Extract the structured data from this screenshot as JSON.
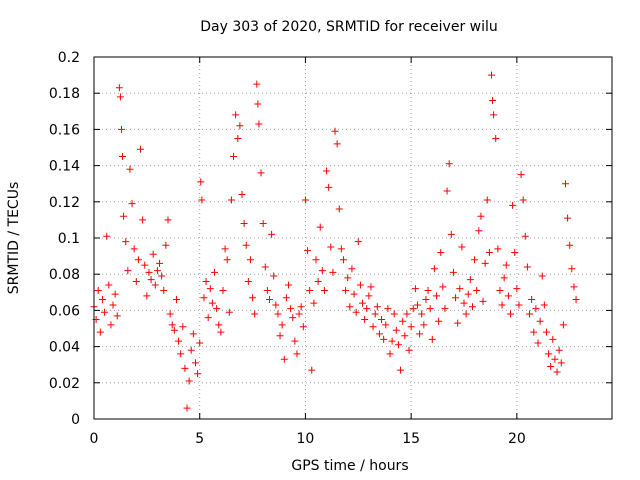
{
  "chart_data": {
    "type": "scatter",
    "title": "Day 303 of 2020, SRMTID for receiver wilu",
    "xlabel": "GPS time / hours",
    "ylabel": "SRMTID / TECUs",
    "xlim": [
      0,
      24.5
    ],
    "ylim": [
      0,
      0.2
    ],
    "xticks": [
      0,
      5,
      10,
      15,
      20
    ],
    "xtick_labels": [
      "0",
      "5",
      "10",
      "15",
      "20"
    ],
    "yticks": [
      0,
      0.02,
      0.04,
      0.06,
      0.08,
      0.1,
      0.12,
      0.14,
      0.16,
      0.18,
      0.2
    ],
    "ytick_labels": [
      "0",
      "0.02",
      "0.04",
      "0.06",
      "0.08",
      "0.1",
      "0.12",
      "0.14",
      "0.16",
      "0.18",
      "0.2"
    ],
    "grid": true,
    "marker": "+",
    "color": "#ff0000",
    "series": [
      {
        "name": "SRMTID",
        "points": [
          [
            0.0,
            0.062
          ],
          [
            0.1,
            0.055
          ],
          [
            0.2,
            0.071
          ],
          [
            0.3,
            0.048
          ],
          [
            0.4,
            0.066
          ],
          [
            0.5,
            0.059
          ],
          [
            0.6,
            0.101
          ],
          [
            0.7,
            0.074
          ],
          [
            0.8,
            0.052
          ],
          [
            0.9,
            0.063
          ],
          [
            1.0,
            0.069
          ],
          [
            1.1,
            0.057
          ],
          [
            1.2,
            0.183
          ],
          [
            1.25,
            0.178
          ],
          [
            1.3,
            0.16
          ],
          [
            1.35,
            0.145
          ],
          [
            1.4,
            0.112
          ],
          [
            1.5,
            0.098
          ],
          [
            1.6,
            0.082
          ],
          [
            1.7,
            0.138
          ],
          [
            1.8,
            0.119
          ],
          [
            1.9,
            0.094
          ],
          [
            2.0,
            0.076
          ],
          [
            2.1,
            0.088
          ],
          [
            2.2,
            0.149
          ],
          [
            2.3,
            0.11
          ],
          [
            2.4,
            0.085
          ],
          [
            2.5,
            0.068
          ],
          [
            2.6,
            0.081
          ],
          [
            2.7,
            0.077
          ],
          [
            2.8,
            0.091
          ],
          [
            2.9,
            0.074
          ],
          [
            3.0,
            0.082
          ],
          [
            3.1,
            0.086
          ],
          [
            3.2,
            0.079
          ],
          [
            3.3,
            0.071
          ],
          [
            3.4,
            0.096
          ],
          [
            3.5,
            0.11
          ],
          [
            3.6,
            0.058
          ],
          [
            3.7,
            0.052
          ],
          [
            3.8,
            0.049
          ],
          [
            3.9,
            0.066
          ],
          [
            4.0,
            0.043
          ],
          [
            4.1,
            0.036
          ],
          [
            4.2,
            0.051
          ],
          [
            4.3,
            0.028
          ],
          [
            4.4,
            0.006
          ],
          [
            4.5,
            0.021
          ],
          [
            4.6,
            0.038
          ],
          [
            4.7,
            0.047
          ],
          [
            4.8,
            0.031
          ],
          [
            4.9,
            0.025
          ],
          [
            5.0,
            0.042
          ],
          [
            5.05,
            0.131
          ],
          [
            5.1,
            0.121
          ],
          [
            5.2,
            0.067
          ],
          [
            5.3,
            0.076
          ],
          [
            5.4,
            0.056
          ],
          [
            5.5,
            0.072
          ],
          [
            5.6,
            0.064
          ],
          [
            5.7,
            0.081
          ],
          [
            5.8,
            0.061
          ],
          [
            5.9,
            0.052
          ],
          [
            6.0,
            0.048
          ],
          [
            6.1,
            0.071
          ],
          [
            6.2,
            0.094
          ],
          [
            6.3,
            0.088
          ],
          [
            6.4,
            0.059
          ],
          [
            6.5,
            0.121
          ],
          [
            6.6,
            0.145
          ],
          [
            6.7,
            0.168
          ],
          [
            6.8,
            0.155
          ],
          [
            6.9,
            0.162
          ],
          [
            7.0,
            0.124
          ],
          [
            7.1,
            0.108
          ],
          [
            7.2,
            0.096
          ],
          [
            7.3,
            0.076
          ],
          [
            7.4,
            0.088
          ],
          [
            7.5,
            0.067
          ],
          [
            7.6,
            0.058
          ],
          [
            7.7,
            0.185
          ],
          [
            7.75,
            0.174
          ],
          [
            7.8,
            0.163
          ],
          [
            7.9,
            0.136
          ],
          [
            8.0,
            0.108
          ],
          [
            8.1,
            0.084
          ],
          [
            8.2,
            0.071
          ],
          [
            8.3,
            0.066
          ],
          [
            8.4,
            0.102
          ],
          [
            8.5,
            0.079
          ],
          [
            8.6,
            0.063
          ],
          [
            8.7,
            0.058
          ],
          [
            8.8,
            0.046
          ],
          [
            8.9,
            0.052
          ],
          [
            9.0,
            0.033
          ],
          [
            9.1,
            0.067
          ],
          [
            9.2,
            0.074
          ],
          [
            9.3,
            0.061
          ],
          [
            9.4,
            0.056
          ],
          [
            9.5,
            0.043
          ],
          [
            9.6,
            0.036
          ],
          [
            9.7,
            0.058
          ],
          [
            9.8,
            0.062
          ],
          [
            9.9,
            0.051
          ],
          [
            10.0,
            0.121
          ],
          [
            10.1,
            0.093
          ],
          [
            10.2,
            0.071
          ],
          [
            10.3,
            0.027
          ],
          [
            10.4,
            0.064
          ],
          [
            10.5,
            0.088
          ],
          [
            10.6,
            0.076
          ],
          [
            10.7,
            0.106
          ],
          [
            10.8,
            0.082
          ],
          [
            10.9,
            0.071
          ],
          [
            11.0,
            0.137
          ],
          [
            11.1,
            0.128
          ],
          [
            11.2,
            0.095
          ],
          [
            11.3,
            0.081
          ],
          [
            11.4,
            0.159
          ],
          [
            11.5,
            0.152
          ],
          [
            11.6,
            0.116
          ],
          [
            11.7,
            0.094
          ],
          [
            11.8,
            0.088
          ],
          [
            11.9,
            0.071
          ],
          [
            12.0,
            0.078
          ],
          [
            12.1,
            0.062
          ],
          [
            12.2,
            0.083
          ],
          [
            12.3,
            0.069
          ],
          [
            12.4,
            0.059
          ],
          [
            12.5,
            0.098
          ],
          [
            12.6,
            0.074
          ],
          [
            12.7,
            0.064
          ],
          [
            12.8,
            0.055
          ],
          [
            12.9,
            0.061
          ],
          [
            13.0,
            0.068
          ],
          [
            13.1,
            0.073
          ],
          [
            13.2,
            0.051
          ],
          [
            13.3,
            0.058
          ],
          [
            13.4,
            0.062
          ],
          [
            13.5,
            0.047
          ],
          [
            13.6,
            0.055
          ],
          [
            13.7,
            0.044
          ],
          [
            13.8,
            0.052
          ],
          [
            13.9,
            0.061
          ],
          [
            14.0,
            0.036
          ],
          [
            14.1,
            0.043
          ],
          [
            14.2,
            0.058
          ],
          [
            14.3,
            0.049
          ],
          [
            14.4,
            0.041
          ],
          [
            14.5,
            0.027
          ],
          [
            14.6,
            0.054
          ],
          [
            14.7,
            0.046
          ],
          [
            14.8,
            0.058
          ],
          [
            14.9,
            0.038
          ],
          [
            15.0,
            0.051
          ],
          [
            15.1,
            0.061
          ],
          [
            15.2,
            0.072
          ],
          [
            15.3,
            0.063
          ],
          [
            15.4,
            0.047
          ],
          [
            15.5,
            0.058
          ],
          [
            15.6,
            0.052
          ],
          [
            15.7,
            0.066
          ],
          [
            15.8,
            0.071
          ],
          [
            15.9,
            0.061
          ],
          [
            16.0,
            0.044
          ],
          [
            16.1,
            0.083
          ],
          [
            16.2,
            0.068
          ],
          [
            16.3,
            0.054
          ],
          [
            16.4,
            0.092
          ],
          [
            16.5,
            0.073
          ],
          [
            16.6,
            0.061
          ],
          [
            16.7,
            0.126
          ],
          [
            16.8,
            0.141
          ],
          [
            16.9,
            0.102
          ],
          [
            17.0,
            0.081
          ],
          [
            17.1,
            0.067
          ],
          [
            17.2,
            0.053
          ],
          [
            17.3,
            0.072
          ],
          [
            17.4,
            0.095
          ],
          [
            17.5,
            0.064
          ],
          [
            17.6,
            0.058
          ],
          [
            17.7,
            0.069
          ],
          [
            17.8,
            0.077
          ],
          [
            17.9,
            0.062
          ],
          [
            18.0,
            0.088
          ],
          [
            18.1,
            0.071
          ],
          [
            18.2,
            0.104
          ],
          [
            18.3,
            0.112
          ],
          [
            18.4,
            0.065
          ],
          [
            18.5,
            0.086
          ],
          [
            18.6,
            0.121
          ],
          [
            18.7,
            0.092
          ],
          [
            18.8,
            0.19
          ],
          [
            18.85,
            0.176
          ],
          [
            18.9,
            0.168
          ],
          [
            19.0,
            0.155
          ],
          [
            19.1,
            0.094
          ],
          [
            19.2,
            0.071
          ],
          [
            19.3,
            0.063
          ],
          [
            19.4,
            0.078
          ],
          [
            19.5,
            0.085
          ],
          [
            19.6,
            0.068
          ],
          [
            19.7,
            0.058
          ],
          [
            19.8,
            0.118
          ],
          [
            19.9,
            0.092
          ],
          [
            20.0,
            0.072
          ],
          [
            20.1,
            0.063
          ],
          [
            20.2,
            0.135
          ],
          [
            20.3,
            0.121
          ],
          [
            20.4,
            0.101
          ],
          [
            20.5,
            0.084
          ],
          [
            20.6,
            0.058
          ],
          [
            20.7,
            0.066
          ],
          [
            20.8,
            0.048
          ],
          [
            20.9,
            0.061
          ],
          [
            21.0,
            0.042
          ],
          [
            21.1,
            0.054
          ],
          [
            21.2,
            0.079
          ],
          [
            21.3,
            0.063
          ],
          [
            21.4,
            0.048
          ],
          [
            21.5,
            0.036
          ],
          [
            21.6,
            0.029
          ],
          [
            21.7,
            0.044
          ],
          [
            21.8,
            0.033
          ],
          [
            21.9,
            0.026
          ],
          [
            22.0,
            0.038
          ],
          [
            22.1,
            0.031
          ],
          [
            22.2,
            0.052
          ],
          [
            22.3,
            0.13
          ],
          [
            22.4,
            0.111
          ],
          [
            22.5,
            0.096
          ],
          [
            22.6,
            0.083
          ],
          [
            22.7,
            0.073
          ],
          [
            22.8,
            0.066
          ]
        ]
      }
    ]
  }
}
